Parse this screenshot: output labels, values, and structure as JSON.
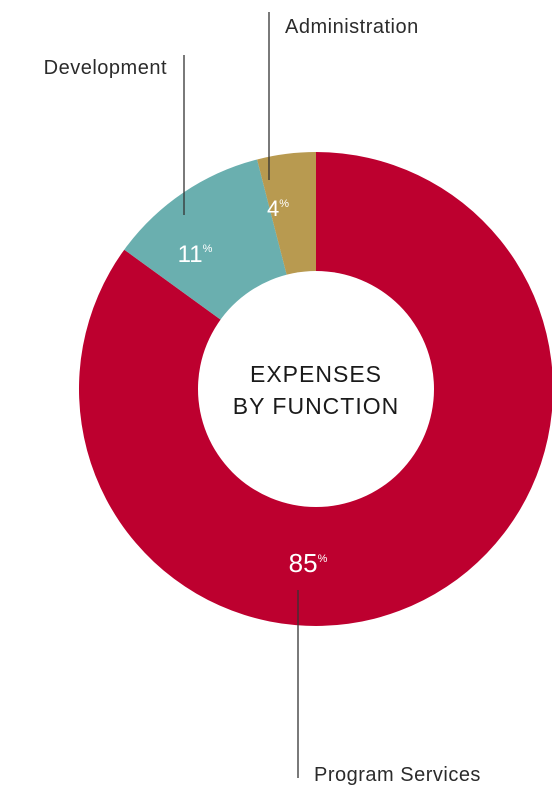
{
  "chart_data": {
    "type": "pie",
    "title_lines": [
      "EXPENSES",
      "BY FUNCTION"
    ],
    "slices": [
      {
        "label": "Program Services",
        "value": 85,
        "color": "#bd002f"
      },
      {
        "label": "Development",
        "value": 11,
        "color": "#6aafaf"
      },
      {
        "label": "Administration",
        "value": 4,
        "color": "#b89a50"
      }
    ],
    "percent_symbol": "%"
  }
}
